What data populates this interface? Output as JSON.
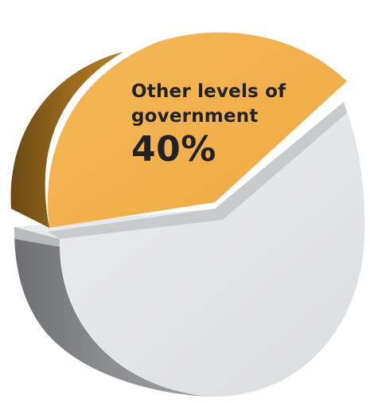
{
  "chart_data": {
    "type": "pie",
    "title": "",
    "slices": [
      {
        "label": "Other levels of government",
        "value": 40,
        "value_label": "40%",
        "color": "#F2B04C",
        "exploded": true
      },
      {
        "value": 60,
        "color": "#E3E4E6"
      }
    ]
  }
}
